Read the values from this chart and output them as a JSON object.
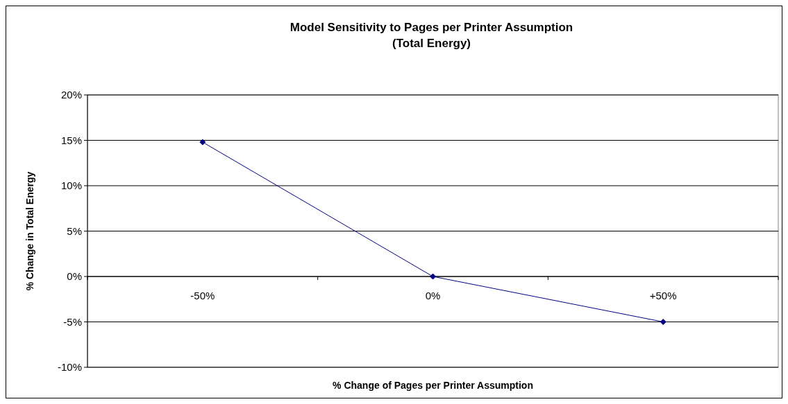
{
  "chart_data": {
    "type": "line",
    "title": "Model Sensitivity to Pages per Printer Assumption",
    "subtitle": "(Total Energy)",
    "xlabel": "% Change of Pages per Printer Assumption",
    "ylabel": "% Change in Total Energy",
    "categories": [
      "-50%",
      "0%",
      "+50%"
    ],
    "series": [
      {
        "color": "#000080",
        "values": [
          14.8,
          0,
          -5
        ]
      }
    ],
    "ylim": [
      -10,
      20
    ],
    "yticks": [
      {
        "value": -10,
        "label": "-10%"
      },
      {
        "value": -5,
        "label": "-5%"
      },
      {
        "value": 0,
        "label": "0%"
      },
      {
        "value": 5,
        "label": "5%"
      },
      {
        "value": 10,
        "label": "10%"
      },
      {
        "value": 15,
        "label": "15%"
      },
      {
        "value": 20,
        "label": "20%"
      }
    ],
    "grid": "y",
    "marker": "diamond",
    "line_style": "solid"
  }
}
